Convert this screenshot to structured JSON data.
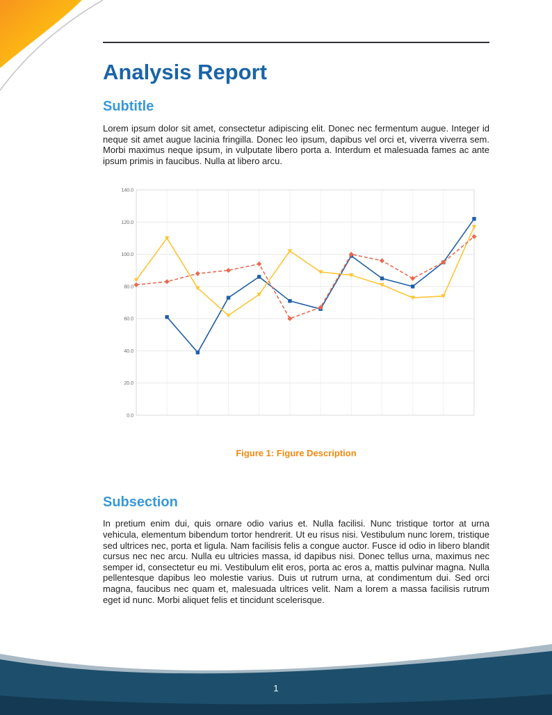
{
  "page": {
    "title": "Analysis Report",
    "page_number": "1"
  },
  "sections": [
    {
      "heading": "Subtitle",
      "body": "Lorem ipsum dolor sit amet, consectetur adipiscing elit. Donec nec fermentum augue. Integer id neque sit amet augue lacinia fringilla. Donec leo ipsum, dapibus vel orci et, viverra viverra sem. Morbi maximus neque ipsum, in vulputate libero porta a. Interdum et malesuada fames ac ante ipsum primis in faucibus. Nulla at libero arcu."
    },
    {
      "heading": "Subsection",
      "body": "In pretium enim dui, quis ornare odio varius et. Nulla facilisi. Nunc tristique tortor at urna vehicula, elementum bibendum tortor hendrerit. Ut eu risus nisi. Vestibulum nunc lorem, tristique sed ultrices nec, porta et ligula. Nam facilisis felis a congue auctor. Fusce id odio in libero blandit cursus nec nec arcu. Nulla eu ultricies massa, id dapibus nisi. Donec tellus urna, maximus nec semper id, consectetur eu mi. Vestibulum elit eros, porta ac eros a, mattis pulvinar magna. Nulla pellentesque dapibus leo molestie varius. Duis ut rutrum urna, at condimentum dui. Sed orci magna, faucibus nec quam et, malesuada ultrices velit. Nam a lorem a massa facilisis rutrum eget id nunc. Morbi aliquet felis et tincidunt scelerisque."
    }
  ],
  "figure": {
    "caption": "Figure 1: Figure Description"
  },
  "colors": {
    "title_blue": "#1b64a7",
    "heading_blue": "#3898d7",
    "caption_orange": "#f0890f",
    "footer_navy": "#1d4f6c",
    "footer_navy_dark": "#133a52",
    "footer_light_band": "#a9bac6",
    "corner_orange": "#f7941d",
    "corner_yellow": "#ffe27a",
    "series_blue": "#1f5fa6",
    "series_yellow": "#fdc534",
    "series_orange": "#e86a4f"
  },
  "chart_data": {
    "type": "line",
    "title": "",
    "xlabel": "",
    "ylabel": "",
    "x": [
      1,
      2,
      3,
      4,
      5,
      6,
      7,
      8,
      9,
      10,
      11,
      12
    ],
    "ylim": [
      0,
      140
    ],
    "yticks": [
      "0.0",
      "20.0",
      "40.0",
      "60.0",
      "80.0",
      "100.0",
      "120.0",
      "140.0"
    ],
    "grid": true,
    "legend": null,
    "series": [
      {
        "name": "series-blue",
        "color": "#1f5fa6",
        "marker": "square",
        "dash": null,
        "values": [
          null,
          61,
          39,
          73,
          86,
          71,
          66,
          99,
          85,
          80,
          95,
          122
        ]
      },
      {
        "name": "series-yellow",
        "color": "#fdc534",
        "marker": "triangle-down",
        "dash": null,
        "values": [
          84,
          110,
          79,
          62,
          75,
          102,
          89,
          87,
          81,
          73,
          74,
          117
        ]
      },
      {
        "name": "series-orange-dashed",
        "color": "#e86a4f",
        "marker": "diamond",
        "dash": "5,3",
        "values": [
          81,
          83,
          88,
          90,
          94,
          60,
          67,
          100,
          96,
          85,
          95,
          111
        ]
      }
    ]
  }
}
